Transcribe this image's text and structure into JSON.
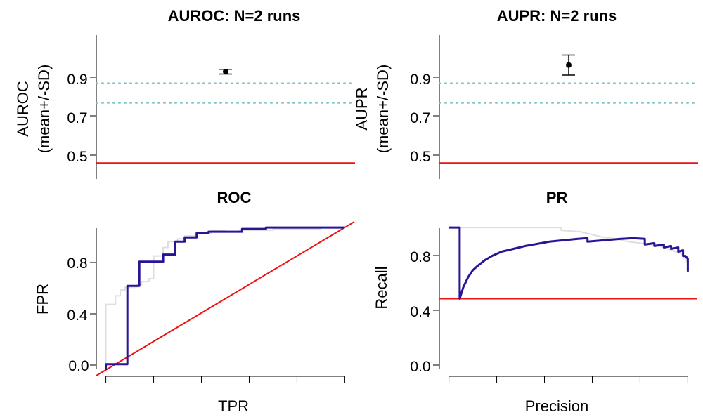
{
  "colors": {
    "baseline": "#ee1111",
    "reference": "#7fc6c6",
    "primary_curve": "#2a1496",
    "secondary_curve": "#dedede",
    "marker": "#000000"
  },
  "chart_data": [
    {
      "id": "auroc",
      "type": "scatter",
      "title": "AUROC: N=2 runs",
      "xlabel": "",
      "ylabel": [
        "AUROC",
        "(mean+/-SD)"
      ],
      "ylim": [
        0.42,
        1.14
      ],
      "yticks": [
        "0.5",
        "0.7",
        "0.9"
      ],
      "points": [
        {
          "y": 0.957,
          "sd": 0.012
        }
      ],
      "baseline": 0.5,
      "reference_lines": [
        0.9,
        0.8
      ]
    },
    {
      "id": "aupr",
      "type": "scatter",
      "title": "AUPR: N=2 runs",
      "xlabel": "",
      "ylabel": [
        "AUPR",
        "(mean+/-SD)"
      ],
      "ylim": [
        0.42,
        1.14
      ],
      "yticks": [
        "0.5",
        "0.7",
        "0.9"
      ],
      "points": [
        {
          "y": 0.99,
          "sd": 0.05
        }
      ],
      "baseline": 0.5,
      "reference_lines": [
        0.9,
        0.8
      ]
    },
    {
      "id": "roc",
      "type": "line",
      "title": "ROC",
      "xlabel": "TPR",
      "ylabel": "FPR",
      "xlim": [
        -0.04,
        1.04
      ],
      "ylim": [
        -0.04,
        1.02
      ],
      "yticks": [
        "0.0",
        "0.4",
        "0.8"
      ],
      "xticks_count": 6,
      "series": [
        {
          "role": "secondary",
          "x": [
            0,
            0,
            0.04,
            0.04,
            0.06,
            0.06,
            0.08,
            0.08,
            0.13,
            0.13,
            0.15,
            0.15,
            0.18,
            0.18,
            0.2,
            0.2,
            0.24,
            0.24,
            0.26,
            0.26,
            0.3,
            0.3,
            0.33,
            0.33,
            0.38,
            0.38,
            0.44,
            0.44,
            0.5,
            0.5,
            0.56,
            0.56,
            0.7,
            0.7,
            0.9,
            0.9,
            1.0
          ],
          "y": [
            0,
            0.46,
            0.46,
            0.52,
            0.52,
            0.56,
            0.56,
            0.58,
            0.58,
            0.6,
            0.6,
            0.62,
            0.62,
            0.64,
            0.64,
            0.8,
            0.8,
            0.86,
            0.86,
            0.9,
            0.9,
            0.92,
            0.92,
            0.94,
            0.94,
            0.96,
            0.96,
            0.98,
            0.98,
            0.97,
            0.97,
            0.98,
            0.98,
            0.99,
            0.99,
            1.0,
            1.0
          ]
        },
        {
          "role": "primary",
          "x": [
            0,
            0,
            0.09,
            0.09,
            0.14,
            0.14,
            0.24,
            0.24,
            0.29,
            0.29,
            0.33,
            0.33,
            0.38,
            0.38,
            0.43,
            0.43,
            0.57,
            0.57,
            0.67,
            0.67,
            1.0
          ],
          "y": [
            0,
            0.04,
            0.04,
            0.59,
            0.59,
            0.76,
            0.76,
            0.81,
            0.81,
            0.9,
            0.9,
            0.93,
            0.93,
            0.96,
            0.96,
            0.97,
            0.97,
            0.99,
            0.99,
            1.0,
            1.0
          ]
        }
      ],
      "baseline": {
        "x": [
          -0.04,
          1.04
        ],
        "y": [
          -0.04,
          1.04
        ]
      }
    },
    {
      "id": "pr",
      "type": "line",
      "title": "PR",
      "xlabel": "Precision",
      "ylabel": "Recall",
      "xlim": [
        -0.04,
        1.04
      ],
      "ylim": [
        -0.04,
        1.02
      ],
      "yticks": [
        "0.0",
        "0.4",
        "0.8"
      ],
      "xticks_count": 6,
      "series": [
        {
          "role": "secondary",
          "x": [
            0.0,
            0.07,
            0.12,
            0.18,
            0.24,
            0.3,
            0.36,
            0.42,
            0.47,
            0.47,
            0.55,
            0.6,
            0.65,
            0.7,
            0.75,
            0.8,
            0.85,
            0.9,
            0.93,
            0.95,
            0.97,
            0.98,
            0.99,
            1.0
          ],
          "y": [
            1.0,
            1.0,
            1.0,
            1.0,
            1.0,
            1.0,
            1.0,
            1.0,
            1.0,
            0.98,
            0.97,
            0.95,
            0.93,
            0.92,
            0.9,
            0.89,
            0.88,
            0.86,
            0.84,
            0.83,
            0.82,
            0.8,
            0.78,
            0.75
          ]
        },
        {
          "role": "primary",
          "x": [
            0.0,
            0.045,
            0.045,
            0.06,
            0.08,
            0.1,
            0.12,
            0.15,
            0.18,
            0.22,
            0.27,
            0.32,
            0.37,
            0.42,
            0.48,
            0.54,
            0.58,
            0.58,
            0.65,
            0.72,
            0.77,
            0.82,
            0.82,
            0.86,
            0.86,
            0.9,
            0.9,
            0.93,
            0.93,
            0.96,
            0.96,
            0.98,
            0.98,
            0.99,
            1.0,
            1.0
          ],
          "y": [
            1.0,
            1.0,
            0.5,
            0.58,
            0.65,
            0.7,
            0.73,
            0.77,
            0.8,
            0.83,
            0.85,
            0.87,
            0.885,
            0.9,
            0.91,
            0.92,
            0.925,
            0.9,
            0.91,
            0.92,
            0.925,
            0.92,
            0.88,
            0.89,
            0.87,
            0.88,
            0.86,
            0.87,
            0.85,
            0.86,
            0.83,
            0.84,
            0.8,
            0.8,
            0.78,
            0.69
          ]
        }
      ],
      "baseline": {
        "y": 0.5
      }
    }
  ]
}
